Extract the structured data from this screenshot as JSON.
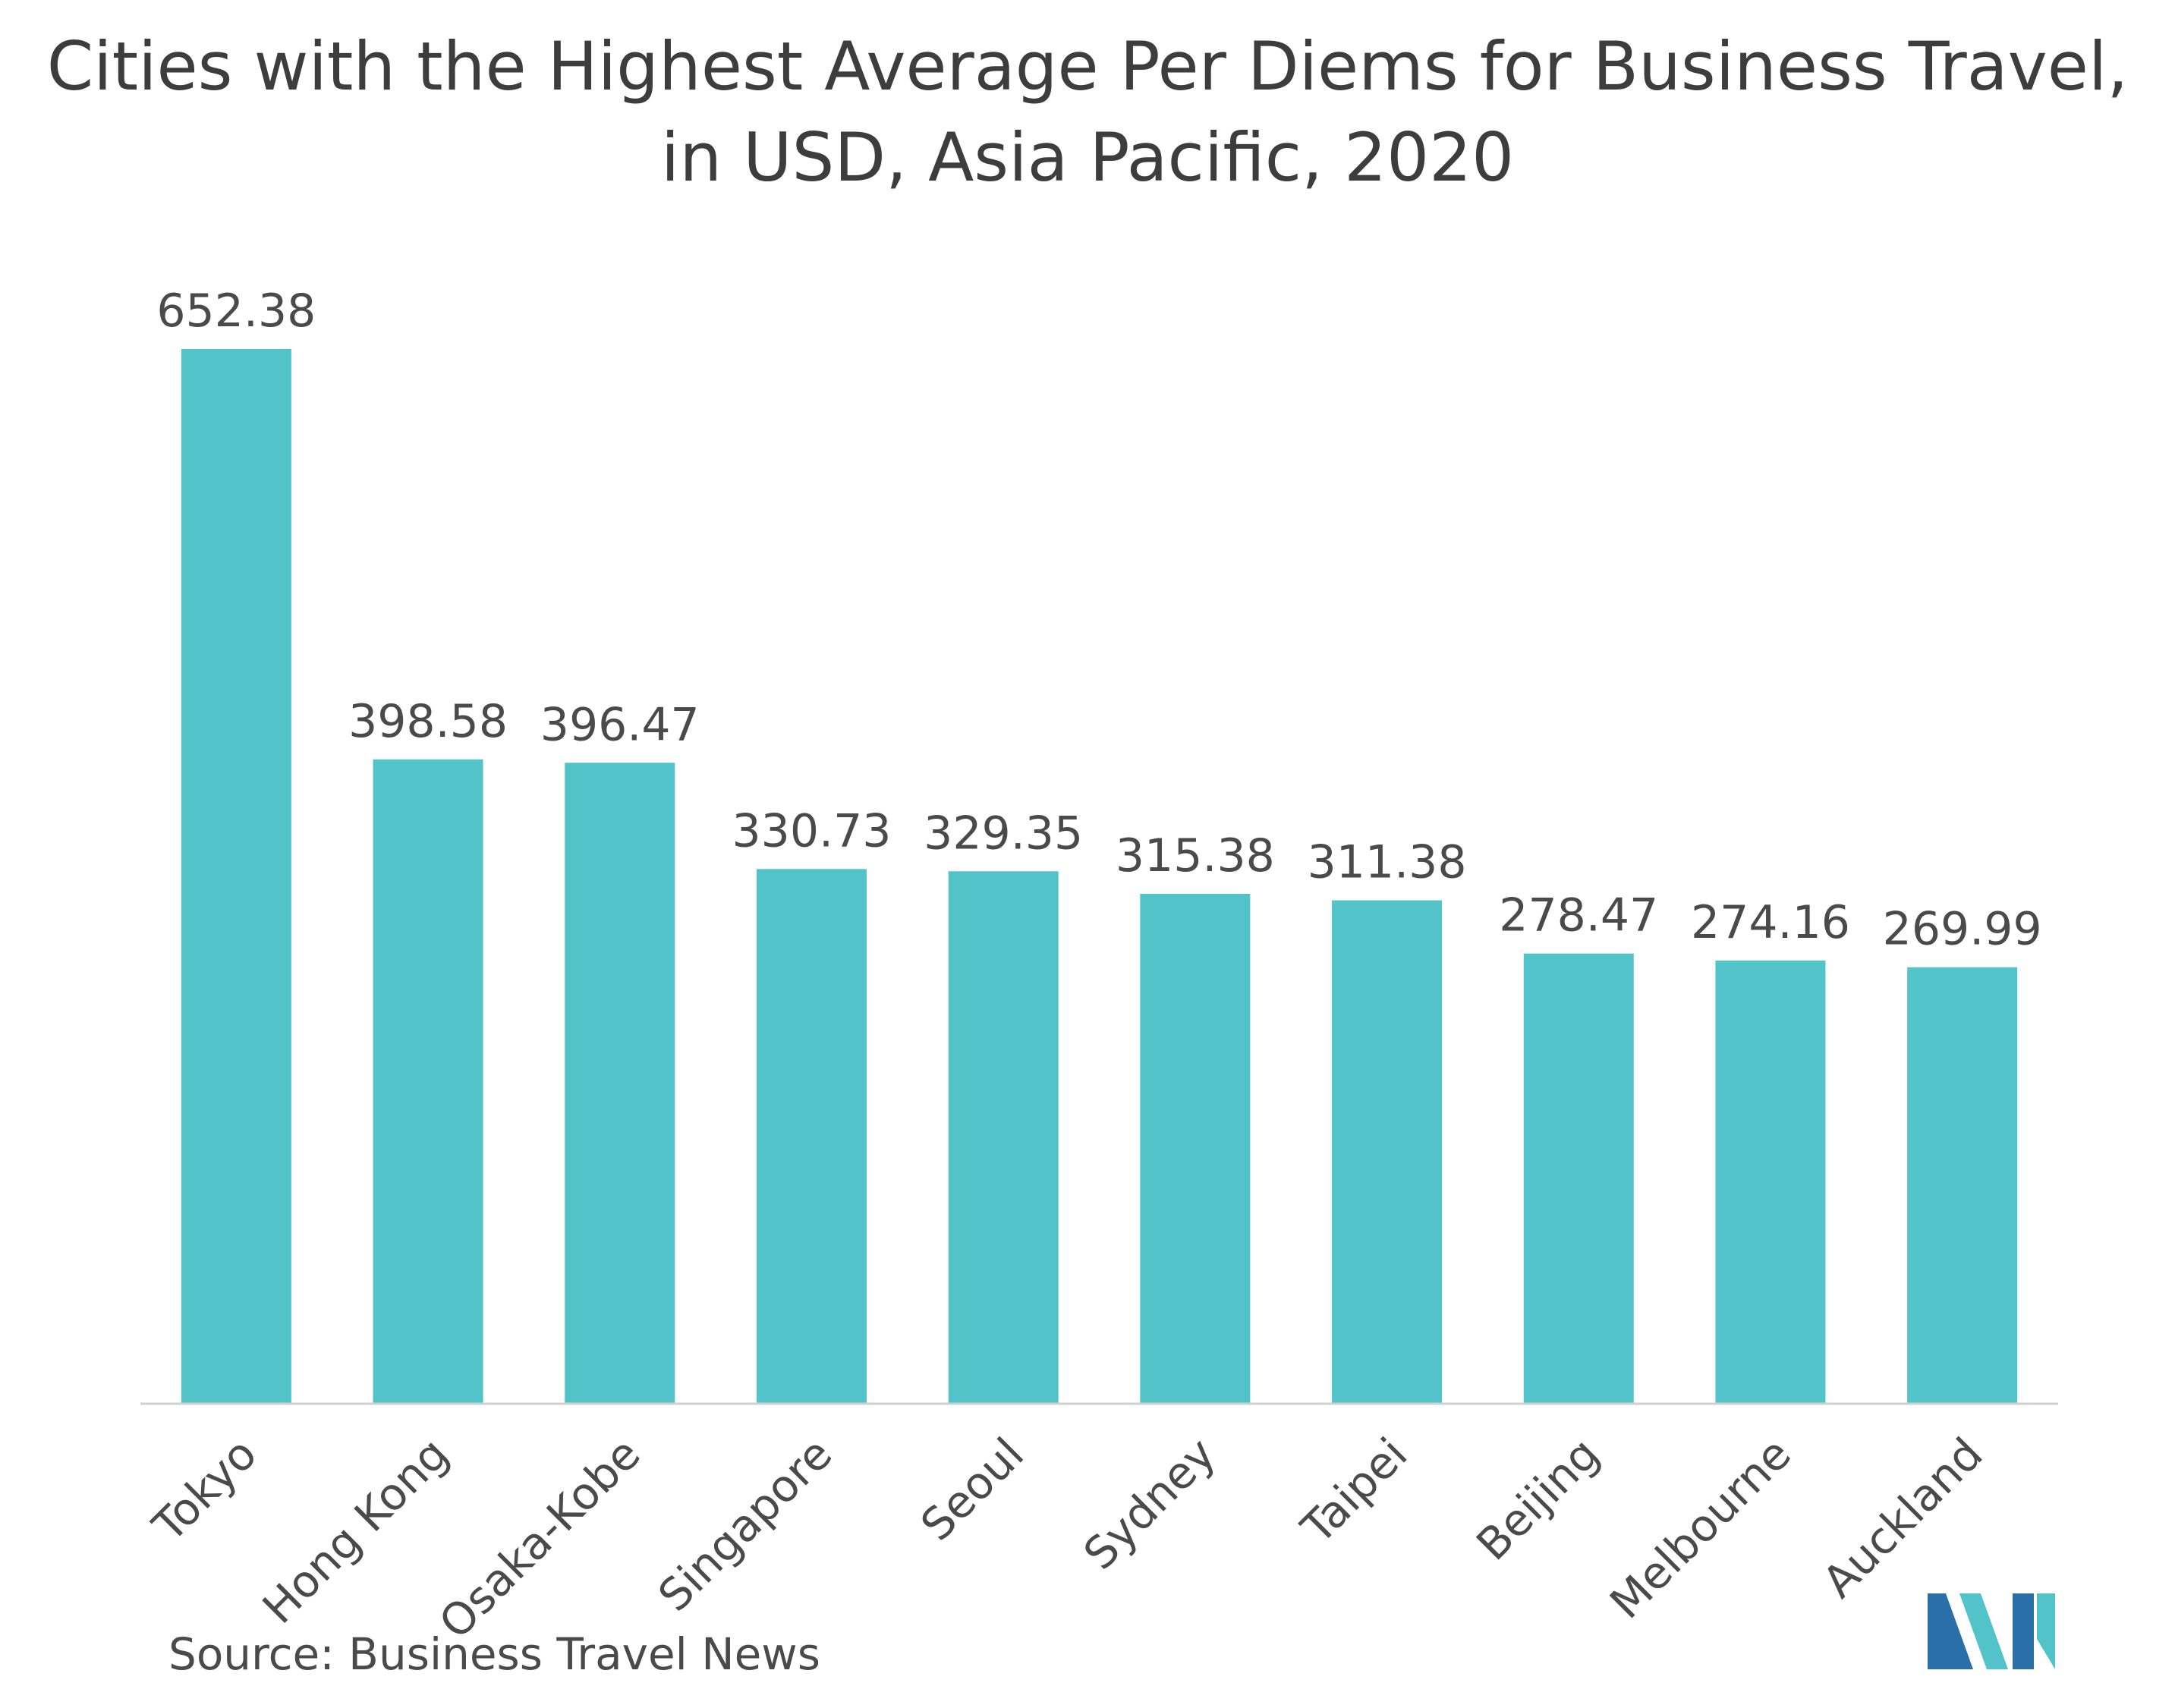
{
  "title_lines": [
    "Cities with the Highest Average Per Diems for Business Travel,",
    "in USD, Asia Pacific, 2020"
  ],
  "source": "Source: Business Travel News",
  "colors": {
    "bar": "#52c3c9",
    "axis": "#d0d0d0",
    "text": "#4a4a4a",
    "logo_dark": "#2a6fa8",
    "logo_light": "#52c3c9"
  },
  "logo_icon": "mordor-intelligence-logo-icon",
  "chart_data": {
    "type": "bar",
    "title": "Cities with the Highest Average Per Diems for Business Travel, in USD, Asia Pacific, 2020",
    "categories": [
      "Tokyo",
      "Hong Kong",
      "Osaka-Kobe",
      "Singapore",
      "Seoul",
      "Sydney",
      "Taipei",
      "Beijing",
      "Melbourne",
      "Auckland"
    ],
    "values": [
      652.38,
      398.58,
      396.47,
      330.73,
      329.35,
      315.38,
      311.38,
      278.47,
      274.16,
      269.99
    ],
    "value_labels": [
      "652.38",
      "398.58",
      "396.47",
      "330.73",
      "329.35",
      "315.38",
      "311.38",
      "278.47",
      "274.16",
      "269.99"
    ],
    "xlabel": "",
    "ylabel": "",
    "ylim": [
      0,
      652.38
    ],
    "grid": false,
    "legend": "none"
  }
}
